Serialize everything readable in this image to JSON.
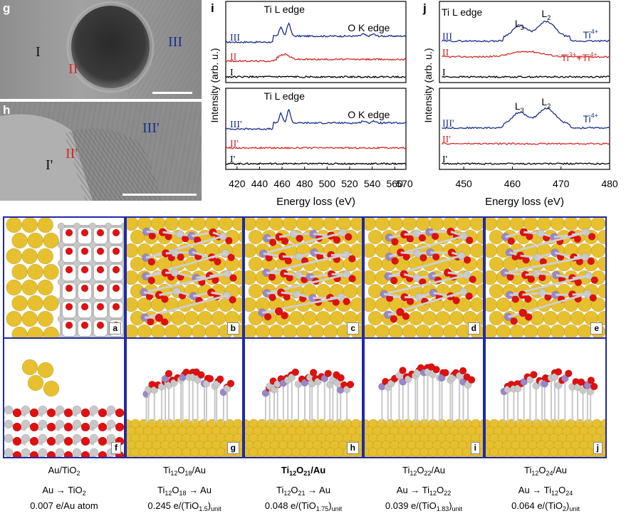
{
  "tem_g": {
    "letter": "g",
    "labels": [
      "I",
      "II",
      "III"
    ]
  },
  "tem_h": {
    "letter": "h",
    "labels": [
      "I'",
      "II'",
      "III'"
    ]
  },
  "colors": {
    "III": "#1b2f8a",
    "II": "#d42a2a",
    "I": "#000000",
    "frame": "#1f2aa6",
    "au": "#e6c02e",
    "o": "#e01010",
    "ti": "#c8c8c8",
    "ti_reduced": "#9a86c8"
  },
  "chart_data": [
    {
      "type": "line",
      "panel": "i",
      "title": "Ti L edge / O K edge",
      "xlabel": "Energy loss (eV)",
      "ylabel": "Intensity (arb. u.)",
      "xlim": [
        410,
        570
      ],
      "xticks": [
        420,
        440,
        460,
        480,
        500,
        520,
        540,
        560
      ],
      "xtick_labels": [
        "420",
        "440",
        "460",
        "480",
        "500",
        "520",
        "540",
        "560"
      ],
      "xtick_extra": "570",
      "annotations": [
        "Ti L edge",
        "O K edge",
        "Ti L edge",
        "O K edge"
      ],
      "upper_series": [
        {
          "name": "III",
          "color": "#1b2f8a",
          "offset": 0.66,
          "profile": "strong"
        },
        {
          "name": "II",
          "color": "#d42a2a",
          "offset": 0.3,
          "profile": "weak"
        },
        {
          "name": "I",
          "color": "#000000",
          "offset": 0.0,
          "profile": "flat"
        }
      ],
      "lower_series": [
        {
          "name": "III'",
          "color": "#1b2f8a",
          "offset": 0.66,
          "profile": "strong"
        },
        {
          "name": "II'",
          "color": "#d42a2a",
          "offset": 0.3,
          "profile": "flat"
        },
        {
          "name": "I'",
          "color": "#000000",
          "offset": 0.0,
          "profile": "flat"
        }
      ]
    },
    {
      "type": "line",
      "panel": "j",
      "title": "Ti L edge",
      "xlabel": "Energy loss (eV)",
      "ylabel": "Intensity (arb. u.)",
      "xlim": [
        445,
        480
      ],
      "xticks": [
        450,
        460,
        470,
        480
      ],
      "xtick_labels": [
        "450",
        "460",
        "470",
        "480"
      ],
      "annotations": [
        "L3",
        "L2"
      ],
      "upper_series": [
        {
          "name": "III",
          "color": "#1b2f8a",
          "state": "Ti4+",
          "profile": "double"
        },
        {
          "name": "II",
          "color": "#d42a2a",
          "state": "Ti3++Ti4+",
          "profile": "bump"
        },
        {
          "name": "I",
          "color": "#000000",
          "state": "",
          "profile": "flat"
        }
      ],
      "lower_series": [
        {
          "name": "III'",
          "color": "#1b2f8a",
          "state": "Ti4+",
          "profile": "double"
        },
        {
          "name": "II'",
          "color": "#d42a2a",
          "state": "",
          "profile": "flat"
        },
        {
          "name": "I'",
          "color": "#000000",
          "state": "",
          "profile": "flat"
        }
      ]
    }
  ],
  "panel_i": {
    "letter": "i",
    "edge1": "Ti L edge",
    "edge2": "O K edge"
  },
  "panel_j": {
    "letter": "j",
    "edge": "Ti L edge",
    "L3": "L",
    "L3sub": "3",
    "L2": "L",
    "L2sub": "2",
    "ti4": "Ti",
    "ti4sup": "4+",
    "mix_a": "Ti",
    "mix_a_sup": "3+",
    "mix_b": "+Ti",
    "mix_b_sup": "4+"
  },
  "structures_top": [
    "a",
    "b",
    "c",
    "d",
    "e"
  ],
  "structures_bottom": [
    "f",
    "g",
    "h",
    "i",
    "j"
  ],
  "captions": [
    {
      "name_main": "Au/TiO",
      "name_sub": "2",
      "name_tail": "",
      "transfer": "Au → TiO",
      "transfer_sub": "2",
      "transfer_tail": "",
      "value": "0.007 e/Au atom",
      "value_sub": "",
      "value_tail": ""
    },
    {
      "name_main": "Ti",
      "name_sub": "12",
      "name_tail": "O",
      "name_sub2": "18",
      "name_end": "/Au",
      "transfer": "Ti",
      "transfer_sub": "12",
      "transfer_tail": "O",
      "transfer_sub2": "18",
      "transfer_end": " → Au",
      "value": "0.245 e/(TiO",
      "value_sub": "1.5",
      "value_tail": ")",
      "value_unit": "unit"
    },
    {
      "name_main": "Ti",
      "name_sub": "12",
      "name_tail": "O",
      "name_sub2": "21",
      "name_end": "/Au",
      "transfer": "Ti",
      "transfer_sub": "12",
      "transfer_tail": "O",
      "transfer_sub2": "21",
      "transfer_end": " → Au",
      "value": "0.048 e/(TiO",
      "value_sub": "1.75",
      "value_tail": ")",
      "value_unit": "unit"
    },
    {
      "name_main": "Ti",
      "name_sub": "12",
      "name_tail": "O",
      "name_sub2": "22",
      "name_end": "/Au",
      "transfer": "Au → Ti",
      "transfer_sub": "12",
      "transfer_tail": "O",
      "transfer_sub2": "22",
      "transfer_end": "",
      "value": "0.039 e/(TiO",
      "value_sub": "1.83",
      "value_tail": ")",
      "value_unit": "unit"
    },
    {
      "name_main": "Ti",
      "name_sub": "12",
      "name_tail": "O",
      "name_sub2": "24",
      "name_end": "/Au",
      "transfer": "Au → Ti",
      "transfer_sub": "12",
      "transfer_tail": "O",
      "transfer_sub2": "24",
      "transfer_end": "",
      "value": "0.064 e/(TiO",
      "value_sub": "2",
      "value_tail": ")",
      "value_unit": "unit"
    }
  ]
}
